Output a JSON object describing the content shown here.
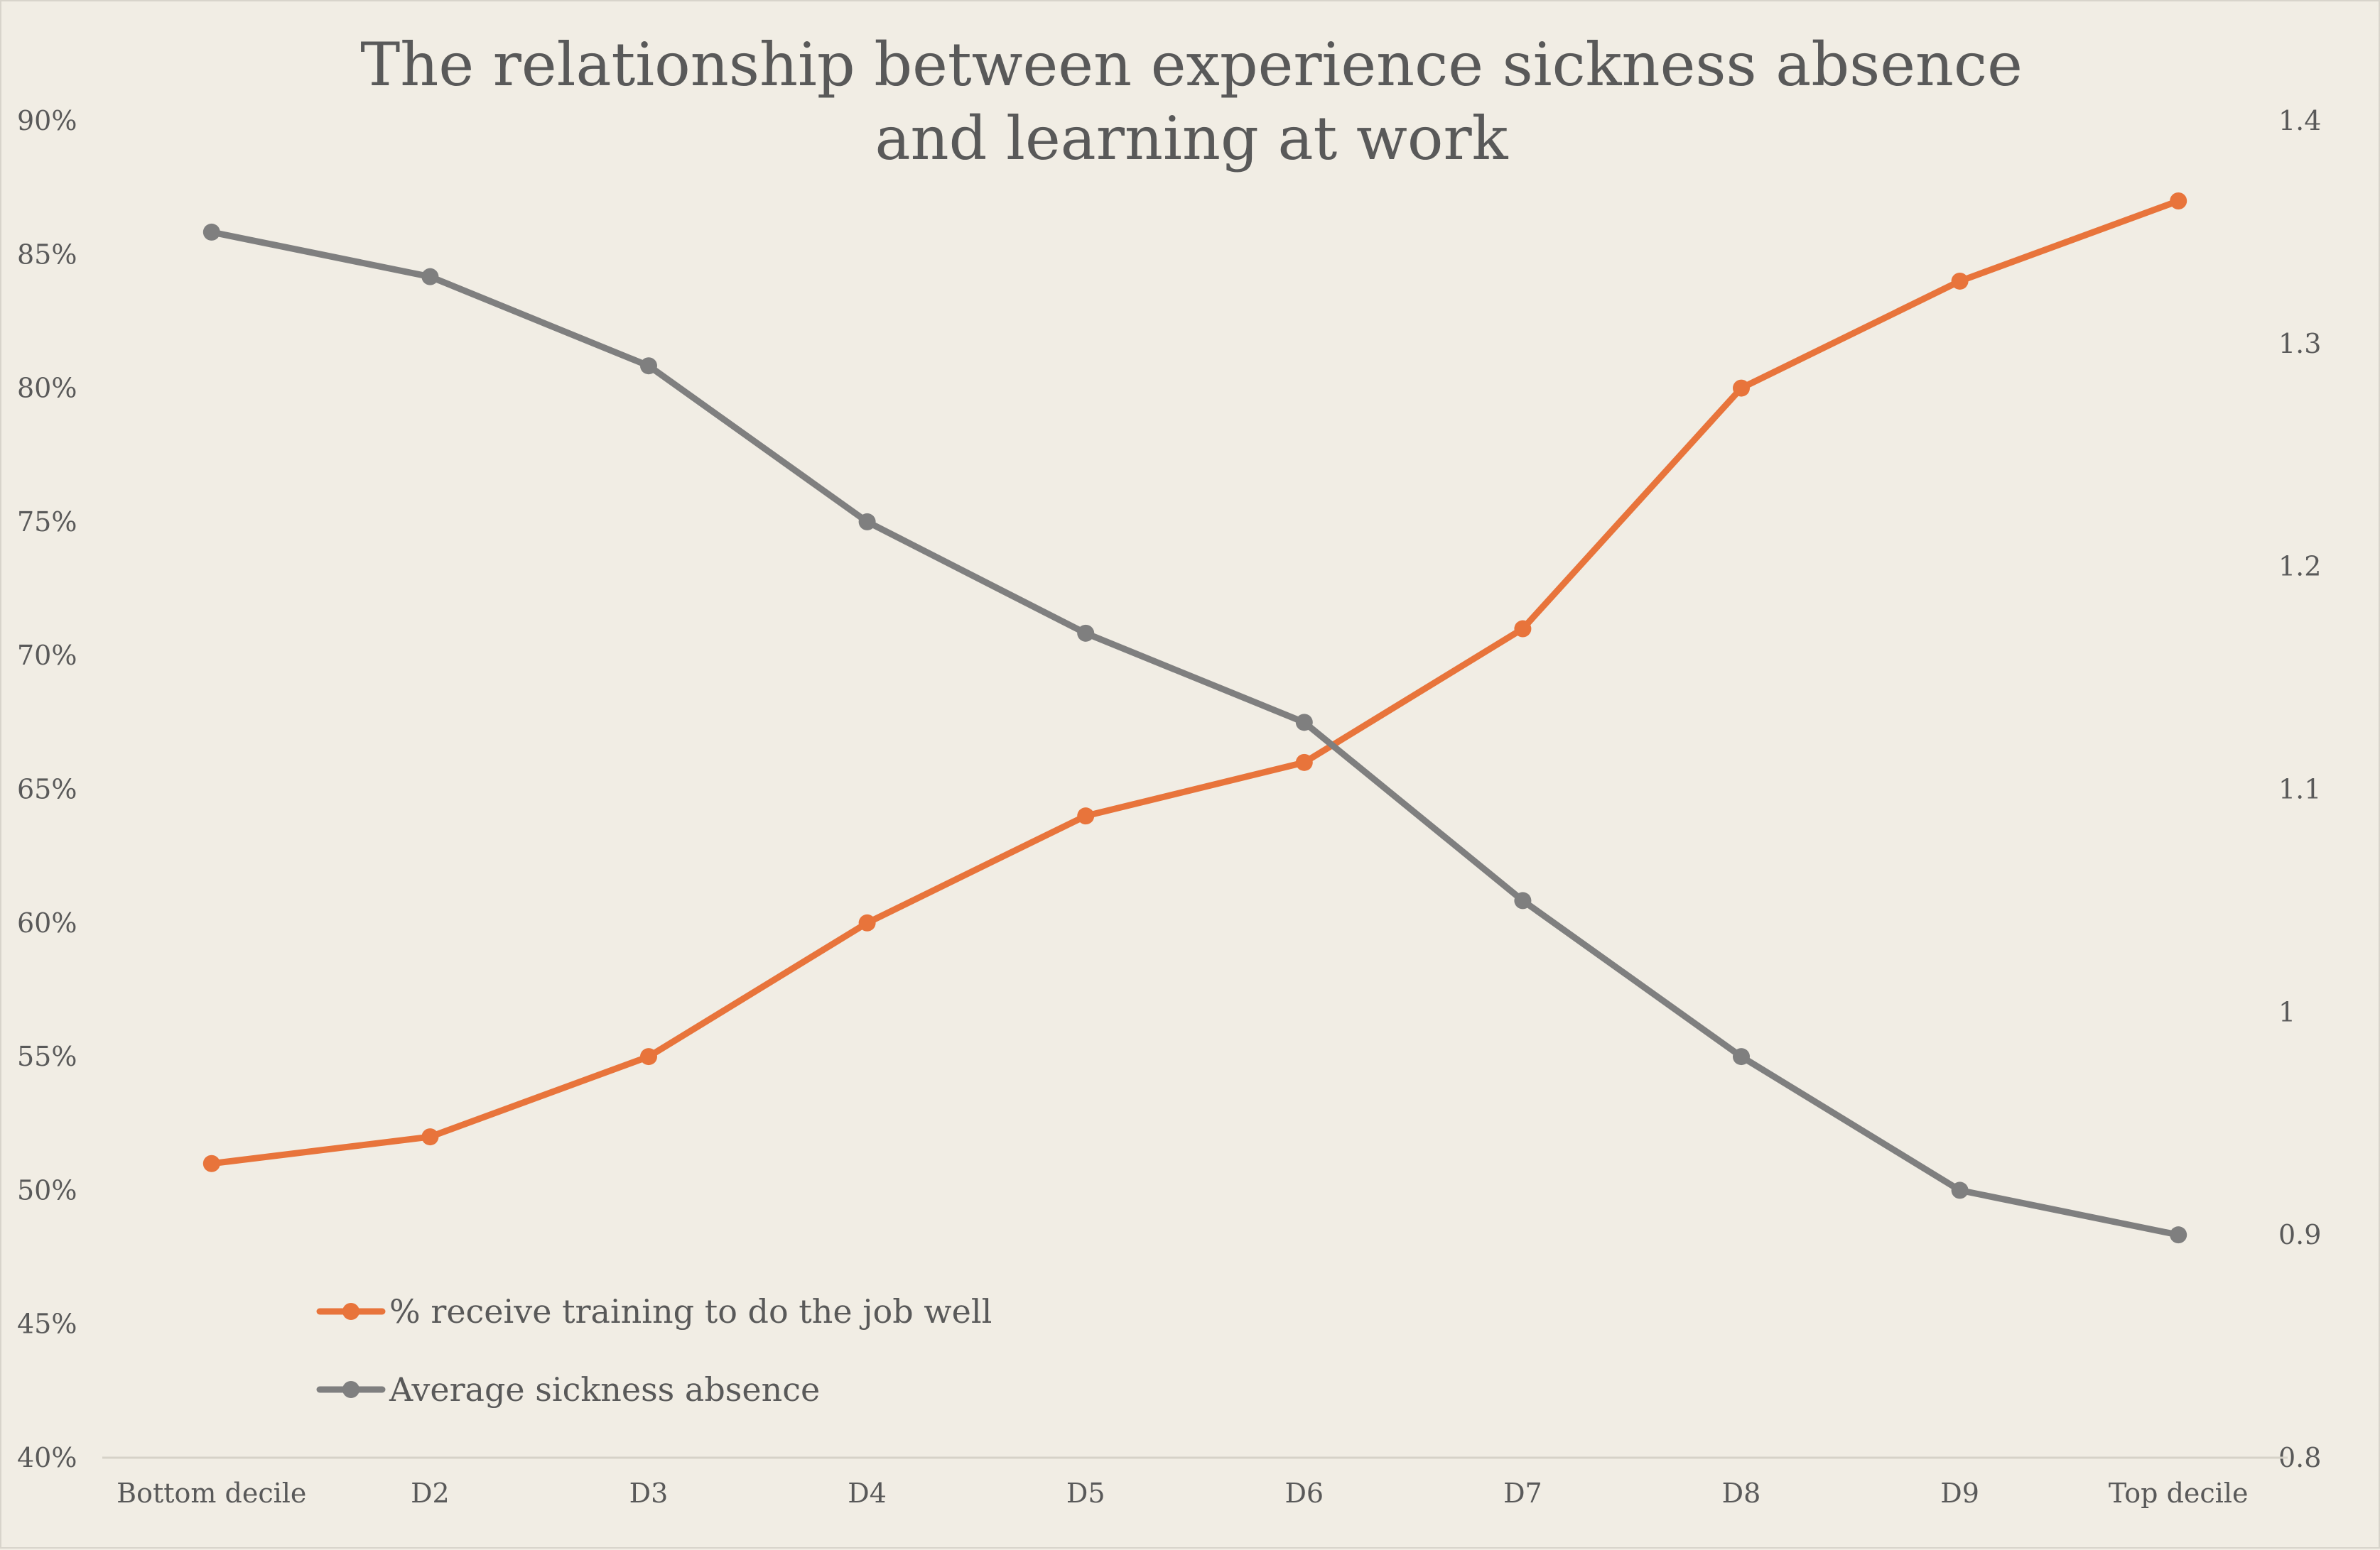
{
  "chart_data": {
    "type": "line",
    "title_lines": [
      "The relationship between experience sickness absence",
      "and learning at work"
    ],
    "categories": [
      "Bottom decile",
      "D2",
      "D3",
      "D4",
      "D5",
      "D6",
      "D7",
      "D8",
      "D9",
      "Top decile"
    ],
    "left_axis": {
      "min": 0.4,
      "max": 0.9,
      "ticks": [
        0.4,
        0.45,
        0.5,
        0.55,
        0.6,
        0.65,
        0.7,
        0.75,
        0.8,
        0.85,
        0.9
      ],
      "tick_labels": [
        "40%",
        "45%",
        "50%",
        "55%",
        "60%",
        "65%",
        "70%",
        "75%",
        "80%",
        "85%",
        "90%"
      ]
    },
    "right_axis": {
      "min": 0.8,
      "max": 1.4,
      "ticks": [
        0.8,
        0.9,
        1.0,
        1.1,
        1.2,
        1.3,
        1.4
      ],
      "tick_labels": [
        "0.8",
        "0.9",
        "1",
        "1.1",
        "1.2",
        "1.3",
        "1.4"
      ]
    },
    "series": [
      {
        "name": "% receive training to do the job well",
        "axis": "left",
        "color": "#e8743b",
        "values": [
          0.51,
          0.52,
          0.55,
          0.6,
          0.64,
          0.66,
          0.71,
          0.8,
          0.84,
          0.87
        ]
      },
      {
        "name": "Average sickness absence",
        "axis": "right",
        "color": "#7f7f7f",
        "values": [
          1.35,
          1.33,
          1.29,
          1.22,
          1.17,
          1.13,
          1.05,
          0.98,
          0.92,
          0.9
        ]
      }
    ],
    "legend_position": "bottom-left",
    "grid": false
  }
}
